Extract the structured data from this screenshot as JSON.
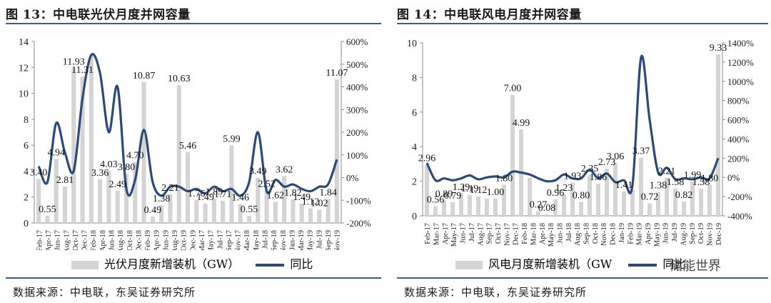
{
  "panels": [
    {
      "title": "图 13：中电联光伏月度并网容量",
      "source": "数据来源：中电联，东吴证券研究所",
      "legend": {
        "bar": "光伏月度新增装机（GW）",
        "line": "同比"
      }
    },
    {
      "title": "图 14：中电联风电月度并网容量",
      "source": "数据来源：中电联，东吴证券研究所",
      "legend": {
        "bar": "风电月度新增装机（GW",
        "line": "同比"
      }
    }
  ],
  "watermark": "储能世界",
  "chart_data": [
    {
      "type": "bar",
      "categories": [
        "Feb-17",
        "Mar-17",
        "Apr-17",
        "May-17",
        "Jun-17",
        "Jul-17",
        "Aug-17",
        "Sep-17",
        "Oct-17",
        "Nov-17",
        "Dec-17",
        "Jan-18",
        "Feb-18",
        "Mar-18",
        "Apr-18",
        "May-18",
        "Jun-18",
        "Jul-18",
        "Aug-18",
        "Sep-18",
        "Oct-18",
        "Nov-18",
        "Dec-18",
        "Jan-19",
        "Feb-19",
        "Mar-19",
        "Apr-19",
        "May-19",
        "Jun-19",
        "Jul-19",
        "Aug-19",
        "Sep-19",
        "Oct-19",
        "Nov-19",
        "Dec-19"
      ],
      "tick_labels": [
        "Feb-17",
        "Apr-17",
        "Jun-17",
        "Aug-17",
        "Oct-17",
        "Dec-17",
        "Feb-18",
        "Apr-18",
        "Jun-18",
        "Aug-18",
        "Oct-18",
        "Dec-18",
        "Feb-19",
        "Apr-19",
        "Jun-19",
        "Aug-19",
        "Oct-19",
        "Dec-19",
        "Mar-17",
        "May-17",
        "Jul-17",
        "Sep-17",
        "Nov-17",
        "Mar-18",
        "May-18",
        "Jul-18",
        "Sep-18",
        "Nov-18",
        "Jan-19",
        "Mar-19",
        "May-19",
        "Jul-19",
        "Sep-19",
        "Nov-19"
      ],
      "series": [
        {
          "name": "光伏月度新增装机（GW）",
          "kind": "bar",
          "axis": "left",
          "values": [
            3.4,
            0.55,
            4.94,
            2.81,
            11.93,
            11.31,
            13.0,
            3.36,
            4.03,
            2.49,
            3.8,
            4.7,
            10.87,
            0.49,
            1.38,
            2.21,
            10.63,
            5.46,
            1.76,
            1.49,
            1.89,
            1.71,
            5.99,
            1.46,
            0.55,
            3.49,
            2.52,
            1.62,
            3.62,
            1.82,
            1.49,
            1.12,
            1.02,
            1.84,
            11.07
          ]
        },
        {
          "name": "同比",
          "kind": "line",
          "axis": "right",
          "values": [
            50,
            -20,
            240,
            110,
            30,
            350,
            540,
            460,
            200,
            400,
            -50,
            -10,
            210,
            -20,
            -80,
            -40,
            -40,
            -60,
            -50,
            -70,
            -40,
            -60,
            -50,
            -80,
            -20,
            200,
            -60,
            -10,
            -40,
            -30,
            -50,
            -60,
            -40,
            -30,
            80
          ]
        }
      ],
      "labels": [
        {
          "i": 0,
          "text": "3.40"
        },
        {
          "i": 1,
          "text": "0.55"
        },
        {
          "i": 2,
          "text": "4.94"
        },
        {
          "i": 3,
          "text": "2.81"
        },
        {
          "i": 4,
          "text": "11.93"
        },
        {
          "i": 5,
          "text": "11.31"
        },
        {
          "i": 7,
          "text": "3.36"
        },
        {
          "i": 8,
          "text": "4.03"
        },
        {
          "i": 9,
          "text": "2.49"
        },
        {
          "i": 10,
          "text": "3.80"
        },
        {
          "i": 11,
          "text": "4.70"
        },
        {
          "i": 12,
          "text": "10.87"
        },
        {
          "i": 13,
          "text": "0.49"
        },
        {
          "i": 14,
          "text": "1.38"
        },
        {
          "i": 15,
          "text": "2.21"
        },
        {
          "i": 16,
          "text": "10.63"
        },
        {
          "i": 17,
          "text": "5.46"
        },
        {
          "i": 18,
          "text": "1.76"
        },
        {
          "i": 19,
          "text": "1.49"
        },
        {
          "i": 20,
          "text": "1.89"
        },
        {
          "i": 21,
          "text": "1.71"
        },
        {
          "i": 22,
          "text": "5.99"
        },
        {
          "i": 23,
          "text": "1.46"
        },
        {
          "i": 24,
          "text": "0.55"
        },
        {
          "i": 25,
          "text": "3.49"
        },
        {
          "i": 26,
          "text": "2.52"
        },
        {
          "i": 27,
          "text": "1.62"
        },
        {
          "i": 28,
          "text": "3.62"
        },
        {
          "i": 29,
          "text": "1.82"
        },
        {
          "i": 30,
          "text": "1.49"
        },
        {
          "i": 31,
          "text": "1.12"
        },
        {
          "i": 32,
          "text": "1.02"
        },
        {
          "i": 33,
          "text": "1.84"
        },
        {
          "i": 34,
          "text": "11.07"
        }
      ],
      "ylim_left": [
        0,
        14
      ],
      "yticks_left": [
        "0",
        "2",
        "4",
        "6",
        "8",
        "10",
        "12",
        "14"
      ],
      "ylim_right": [
        -200,
        600
      ],
      "yticks_right": [
        "-200%",
        "-100%",
        "0%",
        "100%",
        "200%",
        "300%",
        "400%",
        "500%",
        "600%"
      ],
      "grid": false,
      "legend_position": "bottom"
    },
    {
      "type": "bar",
      "categories": [
        "Feb-17",
        "Mar-17",
        "Apr-17",
        "May-17",
        "Jun-17",
        "Jul-17",
        "Aug-17",
        "Sep-17",
        "Oct-17",
        "Nov-17",
        "Dec-17",
        "Jan-18",
        "Feb-18",
        "Mar-18",
        "Apr-18",
        "May-18",
        "Jun-18",
        "Jul-18",
        "Aug-18",
        "Sep-18",
        "Oct-18",
        "Nov-18",
        "Dec-18",
        "Jan-19",
        "Feb-19",
        "Mar-19",
        "Apr-19",
        "May-19",
        "Jun-19",
        "Jul-19",
        "Aug-19",
        "Sep-19",
        "Oct-19",
        "Nov-19",
        "Dec-19"
      ],
      "tick_labels": [
        "Feb-17",
        "Mar-17",
        "Apr-17",
        "May-17",
        "Jun-17",
        "Jul-17",
        "Aug-17",
        "Sep-17",
        "Oct-17",
        "Nov-17",
        "Dec-17",
        "Feb-18",
        "Mar-18",
        "Apr-18",
        "May-18",
        "Jun-18",
        "Jul-18",
        "Aug-18",
        "Sep-18",
        "Oct-18",
        "Nov-18",
        "Dec-18",
        "Jan-19",
        "Feb-19",
        "Mar-19",
        "Apr-19",
        "May-19",
        "Jun-19",
        "Jul-19",
        "Aug-19",
        "Sep-19",
        "Oct-19",
        "Nov-19",
        "Dec-19"
      ],
      "series": [
        {
          "name": "风电月度新增装机（GW",
          "kind": "bar",
          "axis": "left",
          "values": [
            2.96,
            0.56,
            0.89,
            0.79,
            1.29,
            1.19,
            1.12,
            1.0,
            1.0,
            1.8,
            7.0,
            4.99,
            2.2,
            0.27,
            0.08,
            0.96,
            1.23,
            1.93,
            0.8,
            2.35,
            1.86,
            2.73,
            3.06,
            1.41,
            1.5,
            3.37,
            0.72,
            1.38,
            2.21,
            1.58,
            0.82,
            1.99,
            1.58,
            1.8,
            9.33
          ]
        },
        {
          "name": "同比",
          "kind": "line",
          "axis": "right",
          "values": [
            150,
            -30,
            -10,
            -30,
            -10,
            20,
            -20,
            0,
            10,
            0,
            60,
            50,
            30,
            -10,
            -40,
            -30,
            30,
            -10,
            -10,
            80,
            -10,
            40,
            -50,
            -30,
            -80,
            1250,
            600,
            50,
            100,
            -20,
            -10,
            -20,
            0,
            -10,
            200
          ]
        }
      ],
      "labels": [
        {
          "i": 0,
          "text": "2.96"
        },
        {
          "i": 1,
          "text": "0.56"
        },
        {
          "i": 2,
          "text": "0.89"
        },
        {
          "i": 3,
          "text": "0.79"
        },
        {
          "i": 4,
          "text": "1.29"
        },
        {
          "i": 5,
          "text": "1.19"
        },
        {
          "i": 6,
          "text": "1.12"
        },
        {
          "i": 8,
          "text": "1.00"
        },
        {
          "i": 9,
          "text": "1.80"
        },
        {
          "i": 10,
          "text": "7.00"
        },
        {
          "i": 11,
          "text": "4.99"
        },
        {
          "i": 13,
          "text": "0.27"
        },
        {
          "i": 14,
          "text": "0.08"
        },
        {
          "i": 15,
          "text": "0.96"
        },
        {
          "i": 16,
          "text": "1.23"
        },
        {
          "i": 17,
          "text": "1.93"
        },
        {
          "i": 18,
          "text": "0.80"
        },
        {
          "i": 19,
          "text": "2.35"
        },
        {
          "i": 20,
          "text": "1.86"
        },
        {
          "i": 21,
          "text": "2.73"
        },
        {
          "i": 22,
          "text": "3.06"
        },
        {
          "i": 23,
          "text": "1.41"
        },
        {
          "i": 25,
          "text": "3.37"
        },
        {
          "i": 26,
          "text": "0.72"
        },
        {
          "i": 27,
          "text": "1.38"
        },
        {
          "i": 28,
          "text": "2.21"
        },
        {
          "i": 29,
          "text": "1.58"
        },
        {
          "i": 30,
          "text": "0.82"
        },
        {
          "i": 31,
          "text": "1.99"
        },
        {
          "i": 32,
          "text": "1.58"
        },
        {
          "i": 33,
          "text": "1.80"
        },
        {
          "i": 34,
          "text": "9.33"
        }
      ],
      "ylim_left": [
        0,
        10
      ],
      "yticks_left": [
        "0",
        "2",
        "4",
        "6",
        "8",
        "10"
      ],
      "ylim_right": [
        -400,
        1400
      ],
      "yticks_right": [
        "-400%",
        "-200%",
        "0%",
        "200%",
        "400%",
        "600%",
        "800%",
        "1000%",
        "1200%",
        "1400%"
      ],
      "grid": false,
      "legend_position": "bottom"
    }
  ]
}
